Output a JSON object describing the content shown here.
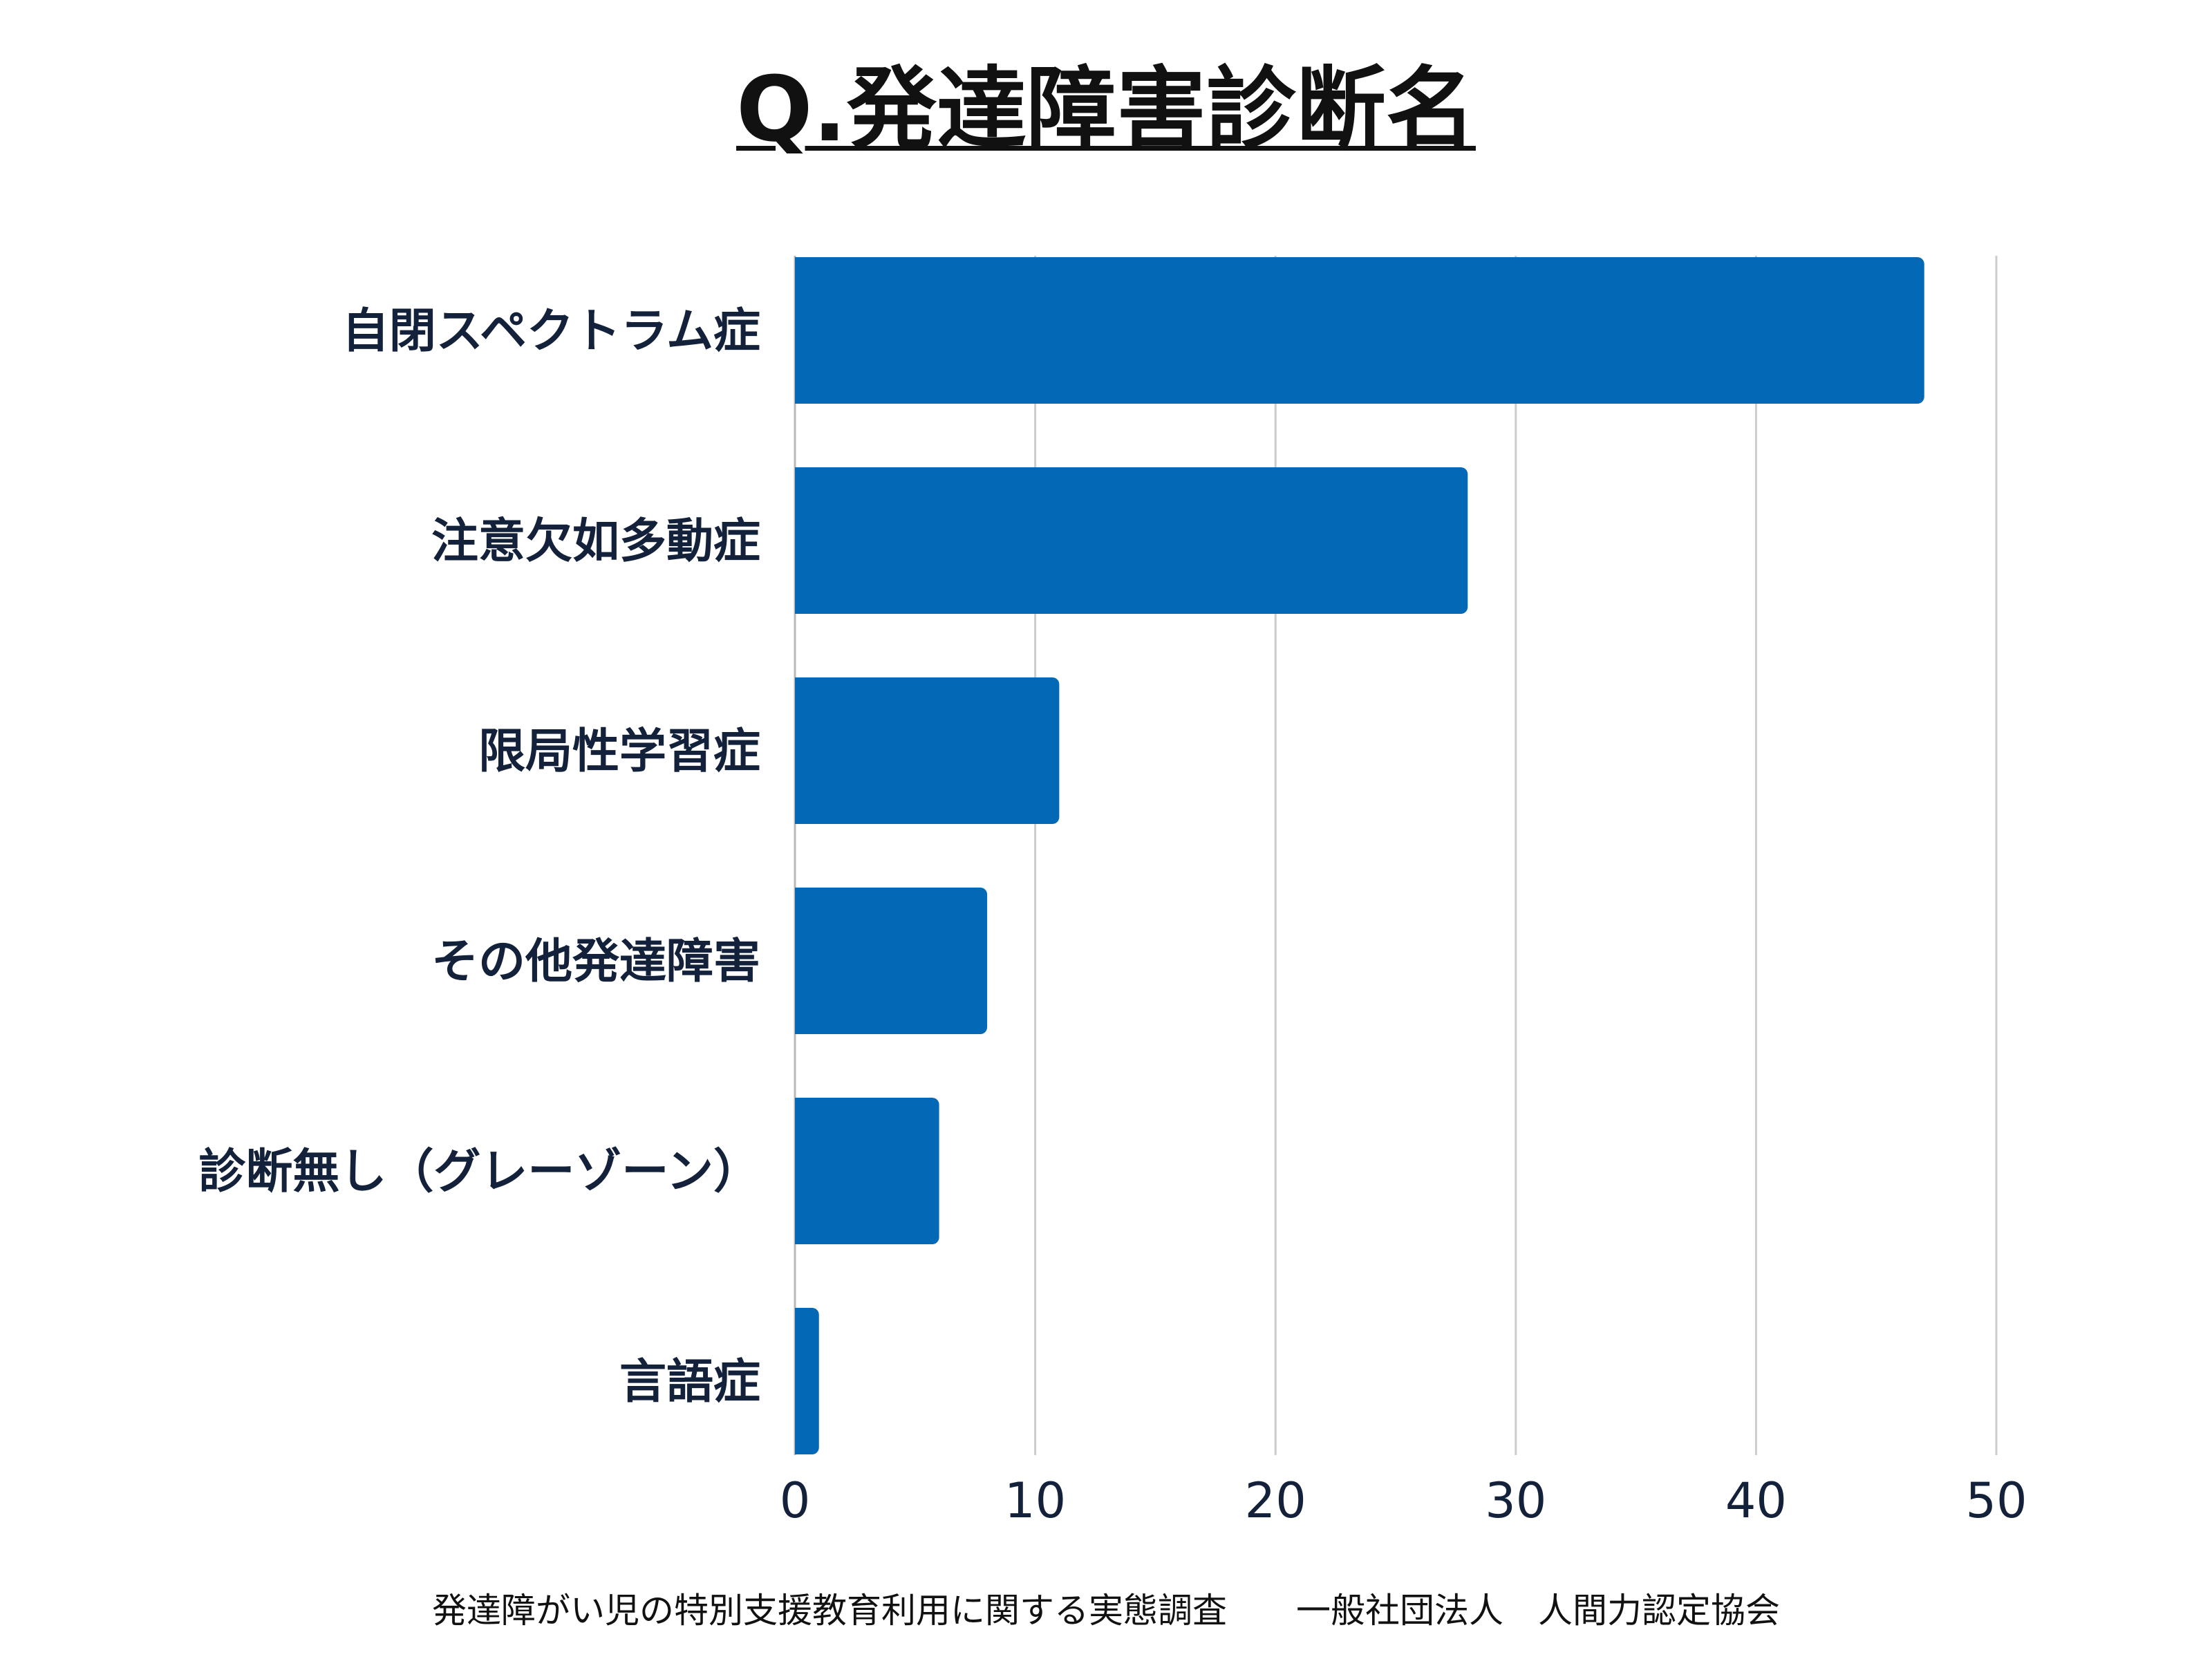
{
  "chart_data": {
    "type": "bar",
    "orientation": "horizontal",
    "title": "Q.発達障害診断名",
    "categories": [
      "自閉スペクトラム症",
      "注意欠如多動症",
      "限局性学習症",
      "その他発達障害",
      "診断無し（グレーゾーン）",
      "言語症"
    ],
    "values": [
      47,
      28,
      11,
      8,
      6,
      1
    ],
    "xlim": [
      0,
      50
    ],
    "xticks": [
      0,
      10,
      20,
      30,
      40,
      50
    ],
    "xticklabels": [
      "0",
      "10",
      "20",
      "30",
      "40",
      "50"
    ],
    "grid": "vertical",
    "bar_color": "#0368b6",
    "grid_color": "#cccccc"
  },
  "footer": {
    "source": "発達障がい児の特別支援教育利用に関する実態調査　　一般社団法人　人間力認定協会"
  }
}
